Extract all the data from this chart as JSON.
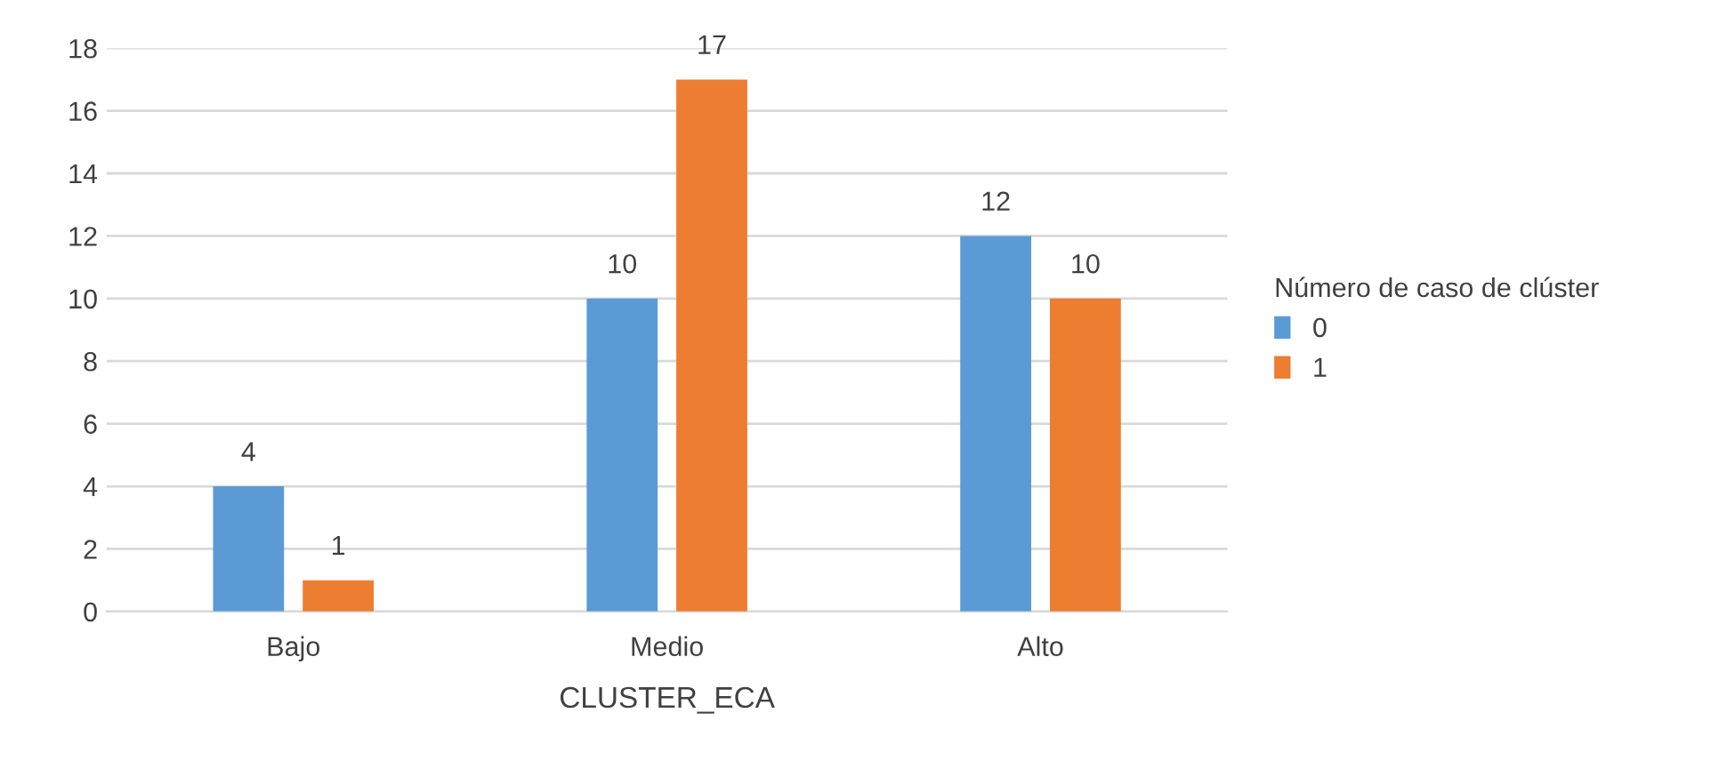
{
  "chart_data": {
    "type": "bar",
    "xlabel": "CLUSTER_ECA",
    "legend_title": "Número de caso de clúster",
    "categories": [
      "Bajo",
      "Medio",
      "Alto"
    ],
    "series": [
      {
        "name": "0",
        "color": "#5b9bd5",
        "values": [
          4,
          10,
          12
        ]
      },
      {
        "name": "1",
        "color": "#ed7d31",
        "values": [
          1,
          17,
          10
        ]
      }
    ],
    "ylim": [
      0,
      18
    ],
    "yticks": [
      0,
      2,
      4,
      6,
      8,
      10,
      12,
      14,
      16,
      18
    ],
    "grid": "y",
    "legend": "right",
    "data_labels": true
  }
}
